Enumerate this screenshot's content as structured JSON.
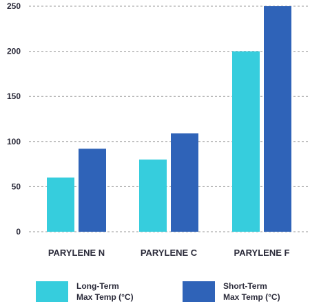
{
  "chart_data": {
    "type": "bar",
    "categories": [
      "PARYLENE N",
      "PARYLENE C",
      "PARYLENE F"
    ],
    "series": [
      {
        "name": "Long-Term Max Temp (°C)",
        "values": [
          60,
          80,
          200
        ],
        "color": "#36cddd"
      },
      {
        "name": "Short-Term Max Temp (°C)",
        "values": [
          92,
          109,
          250
        ],
        "color": "#2f63b8"
      }
    ],
    "title": "",
    "xlabel": "",
    "ylabel": "",
    "ylim": [
      0,
      250
    ],
    "yticks": [
      "0",
      "50",
      "100",
      "150",
      "200",
      "250"
    ],
    "grid": true,
    "legend_position": "bottom"
  },
  "legend": {
    "long_line1": "Long-Term",
    "long_line2": "Max Temp (°C)",
    "short_line1": "Short-Term",
    "short_line2": "Max Temp (°C)"
  }
}
